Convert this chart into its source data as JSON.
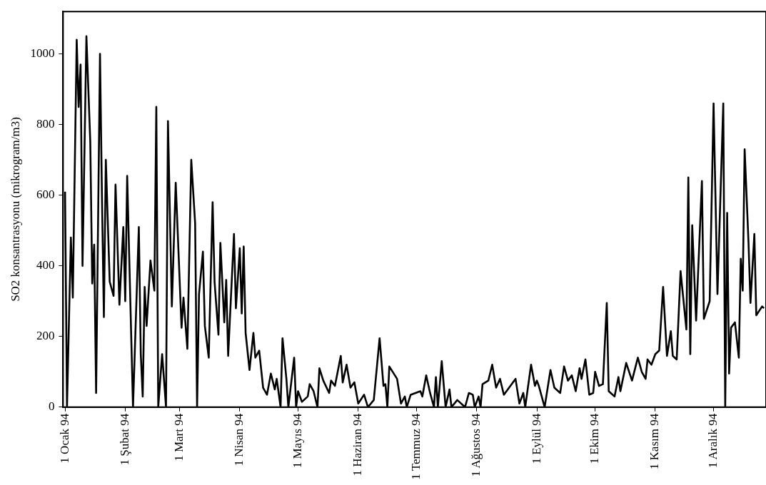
{
  "chart_data": {
    "type": "line",
    "ylabel": "SO2 konsantrasyonu (mikrogram/m3)",
    "color": "#000000",
    "x": [
      "1994-01-01",
      "1994-01-02",
      "1994-01-04",
      "1994-01-05",
      "1994-01-07",
      "1994-01-08",
      "1994-01-09",
      "1994-01-10",
      "1994-01-12",
      "1994-01-14",
      "1994-01-15",
      "1994-01-16",
      "1994-01-17",
      "1994-01-19",
      "1994-01-20",
      "1994-01-21",
      "1994-01-22",
      "1994-01-24",
      "1994-01-26",
      "1994-01-27",
      "1994-01-29",
      "1994-01-31",
      "1994-02-01",
      "1994-02-02",
      "1994-02-05",
      "1994-02-08",
      "1994-02-09",
      "1994-02-10",
      "1994-02-11",
      "1994-02-12",
      "1994-02-14",
      "1994-02-16",
      "1994-02-17",
      "1994-02-18",
      "1994-02-20",
      "1994-02-22",
      "1994-02-23",
      "1994-02-25",
      "1994-02-27",
      "1994-03-02",
      "1994-03-03",
      "1994-03-05",
      "1994-03-07",
      "1994-03-09",
      "1994-03-10",
      "1994-03-11",
      "1994-03-13",
      "1994-03-14",
      "1994-03-16",
      "1994-03-18",
      "1994-03-19",
      "1994-03-21",
      "1994-03-22",
      "1994-03-24",
      "1994-03-25",
      "1994-03-26",
      "1994-03-29",
      "1994-03-30",
      "1994-04-01",
      "1994-04-02",
      "1994-04-03",
      "1994-04-04",
      "1994-04-06",
      "1994-04-08",
      "1994-04-09",
      "1994-04-11",
      "1994-04-13",
      "1994-04-15",
      "1994-04-17",
      "1994-04-19",
      "1994-04-20",
      "1994-04-22",
      "1994-04-23",
      "1994-04-25",
      "1994-04-26",
      "1994-04-29",
      "1994-04-30",
      "1994-05-01",
      "1994-05-03",
      "1994-05-06",
      "1994-05-07",
      "1994-05-09",
      "1994-05-11",
      "1994-05-12",
      "1994-05-14",
      "1994-05-17",
      "1994-05-18",
      "1994-05-20",
      "1994-05-23",
      "1994-05-24",
      "1994-05-26",
      "1994-05-28",
      "1994-05-30",
      "1994-06-01",
      "1994-06-04",
      "1994-06-06",
      "1994-06-09",
      "1994-06-12",
      "1994-06-14",
      "1994-06-15",
      "1994-06-16",
      "1994-06-17",
      "1994-06-21",
      "1994-06-23",
      "1994-06-25",
      "1994-06-26",
      "1994-06-28",
      "1994-07-03",
      "1994-07-04",
      "1994-07-06",
      "1994-07-08",
      "1994-07-10",
      "1994-07-11",
      "1994-07-12",
      "1994-07-14",
      "1994-07-16",
      "1994-07-18",
      "1994-07-19",
      "1994-07-22",
      "1994-07-26",
      "1994-07-28",
      "1994-07-30",
      "1994-07-31",
      "1994-08-02",
      "1994-08-03",
      "1994-08-04",
      "1994-08-07",
      "1994-08-09",
      "1994-08-11",
      "1994-08-13",
      "1994-08-15",
      "1994-08-21",
      "1994-08-23",
      "1994-08-25",
      "1994-08-26",
      "1994-08-29",
      "1994-08-31",
      "1994-09-01",
      "1994-09-02",
      "1994-09-05",
      "1994-09-08",
      "1994-09-10",
      "1994-09-13",
      "1994-09-15",
      "1994-09-17",
      "1994-09-19",
      "1994-09-21",
      "1994-09-23",
      "1994-09-24",
      "1994-09-26",
      "1994-09-28",
      "1994-09-30",
      "1994-10-01",
      "1994-10-03",
      "1994-10-05",
      "1994-10-07",
      "1994-10-08",
      "1994-10-11",
      "1994-10-13",
      "1994-10-14",
      "1994-10-17",
      "1994-10-20",
      "1994-10-23",
      "1994-10-25",
      "1994-10-27",
      "1994-10-28",
      "1994-10-30",
      "1994-11-01",
      "1994-11-03",
      "1994-11-05",
      "1994-11-07",
      "1994-11-09",
      "1994-11-10",
      "1994-11-12",
      "1994-11-14",
      "1994-11-17",
      "1994-11-18",
      "1994-11-19",
      "1994-11-20",
      "1994-11-22",
      "1994-11-25",
      "1994-11-26",
      "1994-11-29",
      "1994-12-01",
      "1994-12-03",
      "1994-12-06",
      "1994-12-07",
      "1994-12-08",
      "1994-12-09",
      "1994-12-10",
      "1994-12-12",
      "1994-12-14",
      "1994-12-15",
      "1994-12-16",
      "1994-12-17",
      "1994-12-19",
      "1994-12-20",
      "1994-12-22",
      "1994-12-23",
      "1994-12-26",
      "1994-12-27"
    ],
    "values": [
      610,
      0,
      480,
      310,
      1040,
      850,
      970,
      400,
      1050,
      750,
      350,
      460,
      40,
      1000,
      600,
      255,
      700,
      355,
      315,
      630,
      290,
      510,
      300,
      655,
      0,
      510,
      150,
      30,
      340,
      230,
      415,
      330,
      850,
      0,
      150,
      0,
      810,
      285,
      635,
      225,
      310,
      165,
      700,
      520,
      0,
      320,
      440,
      230,
      140,
      580,
      355,
      205,
      465,
      240,
      360,
      145,
      490,
      280,
      450,
      265,
      455,
      210,
      105,
      210,
      140,
      160,
      55,
      35,
      95,
      50,
      80,
      0,
      195,
      80,
      0,
      140,
      0,
      45,
      15,
      30,
      65,
      45,
      0,
      110,
      75,
      40,
      75,
      60,
      145,
      70,
      120,
      55,
      70,
      10,
      35,
      0,
      20,
      195,
      60,
      65,
      0,
      115,
      80,
      10,
      30,
      0,
      35,
      45,
      30,
      90,
      40,
      0,
      85,
      0,
      130,
      0,
      50,
      0,
      20,
      0,
      40,
      35,
      0,
      30,
      0,
      65,
      75,
      120,
      55,
      80,
      35,
      80,
      10,
      40,
      0,
      120,
      60,
      75,
      60,
      0,
      105,
      55,
      40,
      115,
      75,
      90,
      45,
      110,
      80,
      135,
      35,
      40,
      100,
      60,
      65,
      295,
      45,
      30,
      85,
      45,
      125,
      75,
      140,
      100,
      80,
      135,
      120,
      150,
      160,
      340,
      145,
      215,
      145,
      135,
      385,
      220,
      650,
      150,
      515,
      245,
      640,
      250,
      300,
      860,
      320,
      860,
      0,
      550,
      95,
      225,
      240,
      140,
      420,
      330,
      730,
      465,
      295,
      490,
      260,
      285,
      280
    ],
    "xlim": [
      "1993-12-31",
      "1994-12-28"
    ],
    "xticks": [
      {
        "value": "1994-01-01",
        "label": "1 Ocak 94"
      },
      {
        "value": "1994-02-01",
        "label": "1 Şubat 94"
      },
      {
        "value": "1994-03-01",
        "label": "1 Mart 94"
      },
      {
        "value": "1994-04-01",
        "label": "1 Nisan 94"
      },
      {
        "value": "1994-05-01",
        "label": "1 Mayıs 94"
      },
      {
        "value": "1994-06-01",
        "label": "1 Haziran 94"
      },
      {
        "value": "1994-07-01",
        "label": "1 Temmuz 94"
      },
      {
        "value": "1994-08-01",
        "label": "1 Ağustos 94"
      },
      {
        "value": "1994-09-01",
        "label": "1 Eylül 94"
      },
      {
        "value": "1994-10-01",
        "label": "1 Ekim 94"
      },
      {
        "value": "1994-11-01",
        "label": "1 Kasım 94"
      },
      {
        "value": "1994-12-01",
        "label": "1 Aralık 94"
      }
    ],
    "ylim": [
      0,
      1120
    ],
    "yticks": [
      0,
      200,
      400,
      600,
      800,
      1000
    ],
    "grid": false,
    "legend": false
  }
}
